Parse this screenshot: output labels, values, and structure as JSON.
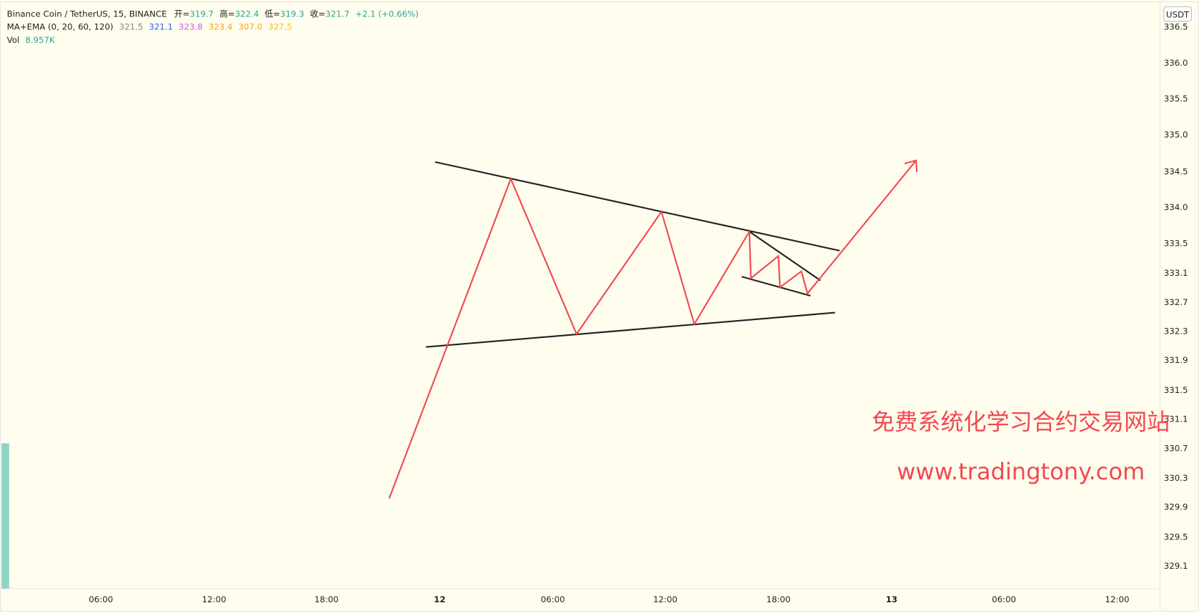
{
  "header": {
    "symbol": "Binance Coin / TetherUS, 15, BINANCE",
    "ohlc": [
      {
        "label": "开=",
        "value": "319.7"
      },
      {
        "label": "高=",
        "value": "322.4"
      },
      {
        "label": "低=",
        "value": "319.3"
      },
      {
        "label": "收=",
        "value": "321.7"
      }
    ],
    "change": "+2.1 (+0.66%)",
    "indicator": "MA+EMA (0, 20, 60, 120)",
    "indicator_values": [
      "321.5",
      "321.1",
      "323.8",
      "323.4",
      "307.0",
      "327.5"
    ],
    "volume_label": "Vol",
    "volume_value": "8.957K"
  },
  "price_axis": {
    "currency": "USDT",
    "labels": [
      "336.5",
      "336.0",
      "335.5",
      "335.0",
      "334.5",
      "334.0",
      "333.5",
      "333.1",
      "332.7",
      "332.3",
      "331.9",
      "331.5",
      "331.1",
      "330.7",
      "330.3",
      "329.9",
      "329.5",
      "329.1"
    ]
  },
  "time_axis": {
    "labels": [
      "06:00",
      "12:00",
      "18:00",
      "12",
      "06:00",
      "12:00",
      "18:00",
      "13",
      "06:00",
      "12:00"
    ]
  },
  "watermark": {
    "title": "免费系统化学习合约交易网站",
    "url": "www.tradingtony.com"
  }
}
